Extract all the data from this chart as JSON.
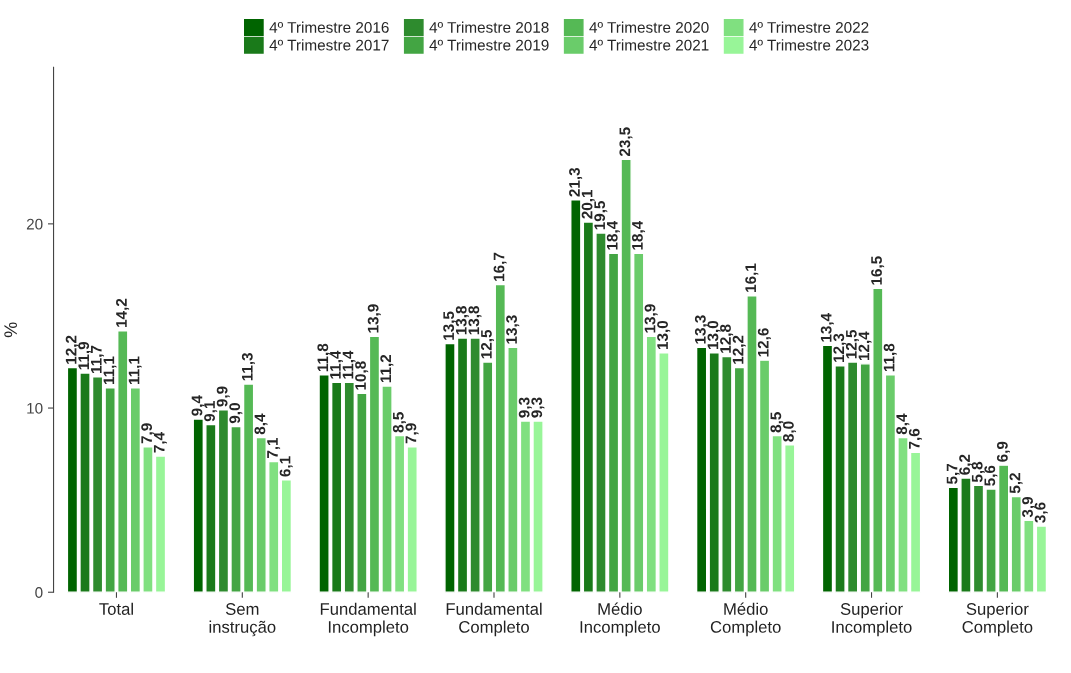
{
  "chart_data": {
    "type": "bar",
    "ylabel": "%",
    "categories": [
      "Total",
      "Sem\ninstrução",
      "Fundamental\nIncompleto",
      "Fundamental\nCompleto",
      "Médio\nIncompleto",
      "Médio\nCompleto",
      "Superior\nIncompleto",
      "Superior\nCompleto"
    ],
    "ylim": [
      0,
      28.5
    ],
    "yticks": [
      0,
      10,
      20
    ],
    "grid": false,
    "legend": "top",
    "series": [
      {
        "name": "4º Trimestre 2016",
        "color": "#006400",
        "values": [
          12.2,
          9.4,
          11.8,
          13.5,
          21.3,
          13.3,
          13.4,
          5.7
        ],
        "value_labels": [
          "12,2",
          "9,4",
          "11,8",
          "13,5",
          "21,3",
          "13,3",
          "13,4",
          "5,7"
        ]
      },
      {
        "name": "4º Trimestre 2017",
        "color": "#1a7a1a",
        "values": [
          11.9,
          9.1,
          11.4,
          13.8,
          20.1,
          13.0,
          12.3,
          6.2
        ],
        "value_labels": [
          "11,9",
          "9,1",
          "11,4",
          "13,8",
          "20,1",
          "13,0",
          "12,3",
          "6,2"
        ]
      },
      {
        "name": "4º Trimestre 2018",
        "color": "#2e8b2e",
        "values": [
          11.7,
          9.9,
          11.4,
          13.8,
          19.5,
          12.8,
          12.5,
          5.8
        ],
        "value_labels": [
          "11,7",
          "9,9",
          "11,4",
          "13,8",
          "19,5",
          "12,8",
          "12,5",
          "5,8"
        ]
      },
      {
        "name": "4º Trimestre 2019",
        "color": "#43a543",
        "values": [
          11.1,
          9.0,
          10.8,
          12.5,
          18.4,
          12.2,
          12.4,
          5.6
        ],
        "value_labels": [
          "11,1",
          "9,0",
          "10,8",
          "12,5",
          "18,4",
          "12,2",
          "12,4",
          "5,6"
        ]
      },
      {
        "name": "4º Trimestre 2020",
        "color": "#55b955",
        "values": [
          14.2,
          11.3,
          13.9,
          16.7,
          23.5,
          16.1,
          16.5,
          6.9
        ],
        "value_labels": [
          "14,2",
          "11,3",
          "13,9",
          "16,7",
          "23,5",
          "16,1",
          "16,5",
          "6,9"
        ]
      },
      {
        "name": "4º Trimestre 2021",
        "color": "#6acc6a",
        "values": [
          11.1,
          8.4,
          11.2,
          13.3,
          18.4,
          12.6,
          11.8,
          5.2
        ],
        "value_labels": [
          "11,1",
          "8,4",
          "11,2",
          "13,3",
          "18,4",
          "12,6",
          "11,8",
          "5,2"
        ]
      },
      {
        "name": "4º Trimestre 2022",
        "color": "#80e080",
        "values": [
          7.9,
          7.1,
          8.5,
          9.3,
          13.9,
          8.5,
          8.4,
          3.9
        ],
        "value_labels": [
          "7,9",
          "7,1",
          "8,5",
          "9,3",
          "13,9",
          "8,5",
          "8,4",
          "3,9"
        ]
      },
      {
        "name": "4º Trimestre 2023",
        "color": "#98f598",
        "values": [
          7.4,
          6.1,
          7.9,
          9.3,
          13.0,
          8.0,
          7.6,
          3.6
        ],
        "value_labels": [
          "7,4",
          "6,1",
          "7,9",
          "9,3",
          "13,0",
          "8,0",
          "7,6",
          "3,6"
        ]
      }
    ]
  }
}
